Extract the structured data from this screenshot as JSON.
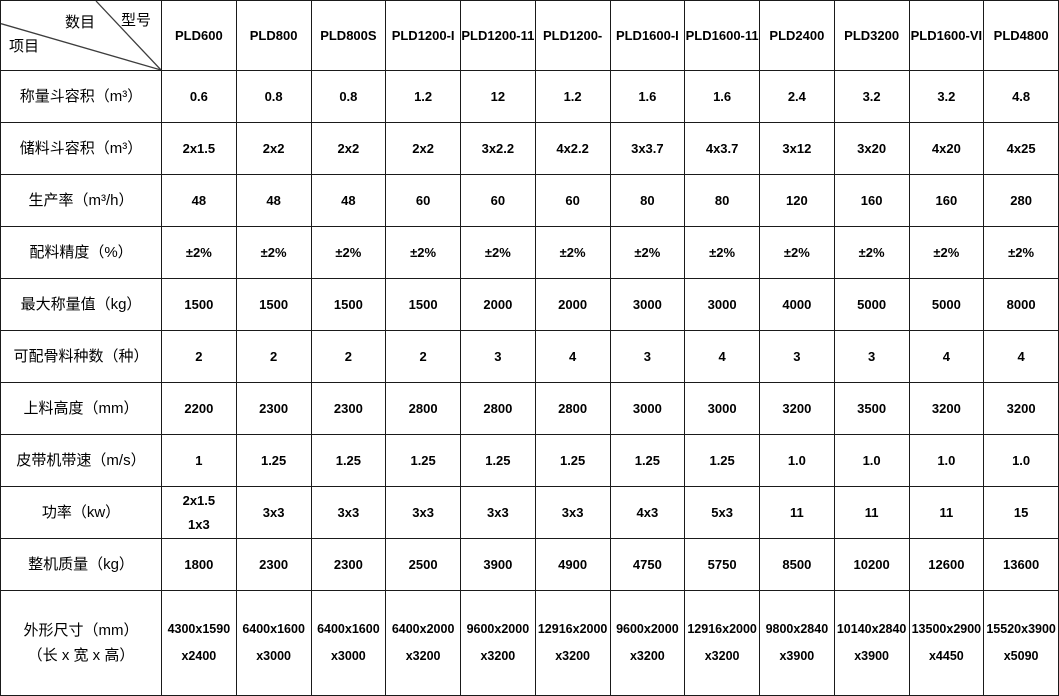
{
  "table": {
    "corner": {
      "middle_label": "数目",
      "top_right_label": "型号",
      "bottom_left_label": "项目"
    },
    "models": [
      "PLD600",
      "PLD800",
      "PLD800S",
      "PLD1200-I",
      "PLD1200-11",
      "PLD1200-",
      "PLD1600-I",
      "PLD1600-11",
      "PLD2400",
      "PLD3200",
      "PLD1600-VI",
      "PLD4800"
    ],
    "rows": [
      {
        "label": "称量斗容积（m³）",
        "values": [
          "0.6",
          "0.8",
          "0.8",
          "1.2",
          "12",
          "1.2",
          "1.6",
          "1.6",
          "2.4",
          "3.2",
          "3.2",
          "4.8"
        ]
      },
      {
        "label": "储料斗容积（m³）",
        "values": [
          "2x1.5",
          "2x2",
          "2x2",
          "2x2",
          "3x2.2",
          "4x2.2",
          "3x3.7",
          "4x3.7",
          "3x12",
          "3x20",
          "4x20",
          "4x25"
        ]
      },
      {
        "label": "生产率（m³/h）",
        "values": [
          "48",
          "48",
          "48",
          "60",
          "60",
          "60",
          "80",
          "80",
          "120",
          "160",
          "160",
          "280"
        ]
      },
      {
        "label": "配料精度（%）",
        "values": [
          "±2%",
          "±2%",
          "±2%",
          "±2%",
          "±2%",
          "±2%",
          "±2%",
          "±2%",
          "±2%",
          "±2%",
          "±2%",
          "±2%"
        ]
      },
      {
        "label": "最大称量值（kg）",
        "values": [
          "1500",
          "1500",
          "1500",
          "1500",
          "2000",
          "2000",
          "3000",
          "3000",
          "4000",
          "5000",
          "5000",
          "8000"
        ]
      },
      {
        "label": "可配骨料种数（种）",
        "values": [
          "2",
          "2",
          "2",
          "2",
          "3",
          "4",
          "3",
          "4",
          "3",
          "3",
          "4",
          "4"
        ]
      },
      {
        "label": "上料高度（mm）",
        "values": [
          "2200",
          "2300",
          "2300",
          "2800",
          "2800",
          "2800",
          "3000",
          "3000",
          "3200",
          "3500",
          "3200",
          "3200"
        ]
      },
      {
        "label": "皮带机带速（m/s）",
        "values": [
          "1",
          "1.25",
          "1.25",
          "1.25",
          "1.25",
          "1.25",
          "1.25",
          "1.25",
          "1.0",
          "1.0",
          "1.0",
          "1.0"
        ]
      },
      {
        "label": "功率（kw）",
        "values": [
          "2x1.5\n1x3",
          "3x3",
          "3x3",
          "3x3",
          "3x3",
          "3x3",
          "4x3",
          "5x3",
          "11",
          "11",
          "11",
          "15"
        ]
      },
      {
        "label": "整机质量（kg）",
        "values": [
          "1800",
          "2300",
          "2300",
          "2500",
          "3900",
          "4900",
          "4750",
          "5750",
          "8500",
          "10200",
          "12600",
          "13600"
        ]
      },
      {
        "label": "外形尺寸（mm）\n（长 x 宽 x 高）",
        "values": [
          "4300x1590\nx2400",
          "6400x1600\nx3000",
          "6400x1600\nx3000",
          "6400x2000\nx3200",
          "9600x2000\nx3200",
          "12916x2000\nx3200",
          "9600x2000\nx3200",
          "12916x2000\nx3200",
          "9800x2840\nx3900",
          "10140x2840\nx3900",
          "13500x2900\nx4450",
          "15520x3900\nx5090"
        ]
      }
    ]
  }
}
